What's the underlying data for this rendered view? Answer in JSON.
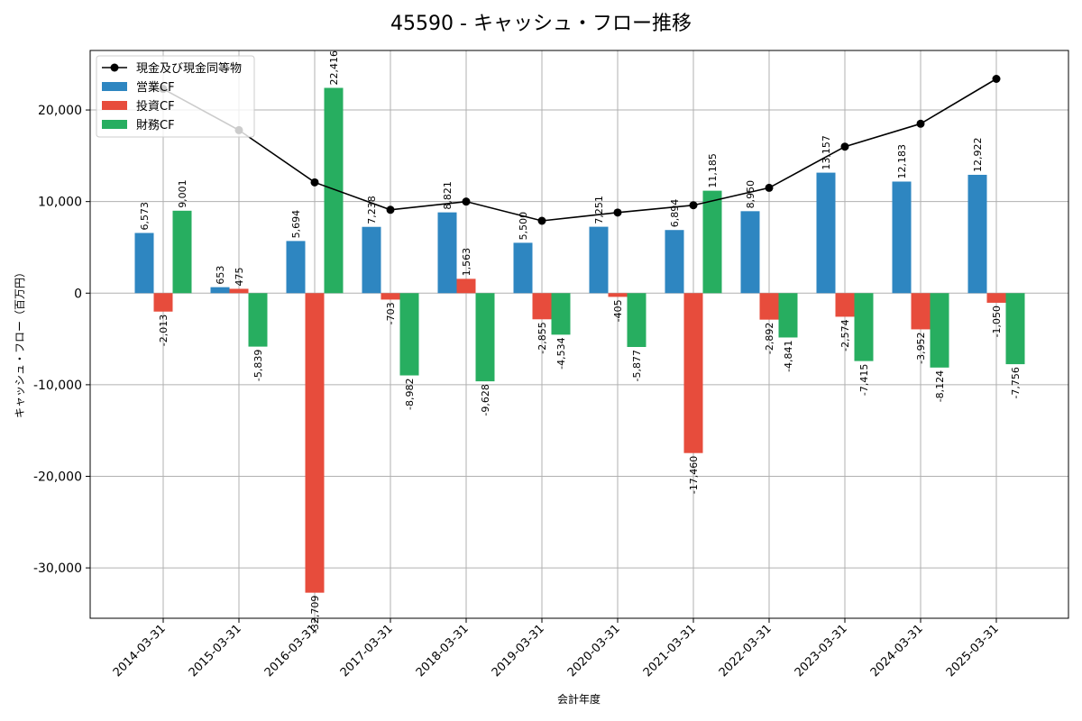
{
  "chart_data": {
    "type": "bar",
    "title": "45590 - キャッシュ・フロー推移",
    "xlabel": "会計年度",
    "ylabel": "キャッシュ・フロー（百万円）",
    "ylim": [
      -35500,
      26500
    ],
    "yticks": [
      -30000,
      -20000,
      -10000,
      0,
      10000,
      20000
    ],
    "ytick_labels": [
      "-30,000",
      "-20,000",
      "-10,000",
      "0",
      "10,000",
      "20,000"
    ],
    "grid": true,
    "legend_position": "top-left",
    "categories": [
      "2014-03-31",
      "2015-03-31",
      "2016-03-31",
      "2017-03-31",
      "2018-03-31",
      "2019-03-31",
      "2020-03-31",
      "2021-03-31",
      "2022-03-31",
      "2023-03-31",
      "2024-03-31",
      "2025-03-31"
    ],
    "series": [
      {
        "name": "営業CF",
        "kind": "bar",
        "color": "#2e86c1",
        "values": [
          6573,
          653,
          5694,
          7238,
          8821,
          5500,
          7251,
          6894,
          8950,
          13157,
          12183,
          12922
        ],
        "labels": [
          "6,573",
          "653",
          "5,694",
          "7,238",
          "8,821",
          "5,500",
          "7,251",
          "6,894",
          "8,950",
          "13,157",
          "12,183",
          "12,922"
        ]
      },
      {
        "name": "投資CF",
        "kind": "bar",
        "color": "#e74c3c",
        "values": [
          -2013,
          475,
          -32709,
          -703,
          1563,
          -2855,
          -405,
          -17460,
          -2892,
          -2574,
          -3952,
          -1050
        ],
        "labels": [
          "-2,013",
          "475",
          "-32,709",
          "-703",
          "1,563",
          "-2,855",
          "-405",
          "-17,460",
          "-2,892",
          "-2,574",
          "-3,952",
          "-1,050"
        ]
      },
      {
        "name": "財務CF",
        "kind": "bar",
        "color": "#27ae60",
        "values": [
          9001,
          -5839,
          22416,
          -8982,
          -9628,
          -4534,
          -5877,
          11185,
          -4841,
          -7415,
          -8124,
          -7756
        ],
        "labels": [
          "9,001",
          "-5,839",
          "22,416",
          "-8,982",
          "-9,628",
          "-4,534",
          "-5,877",
          "11,185",
          "-4,841",
          "-7,415",
          "-8,124",
          "-7,756"
        ]
      },
      {
        "name": "現金及び現金同等物",
        "kind": "line",
        "color": "#000000",
        "values": [
          22300,
          17800,
          12100,
          9100,
          10000,
          7900,
          8800,
          9600,
          11500,
          16000,
          18500,
          23400
        ]
      }
    ]
  }
}
